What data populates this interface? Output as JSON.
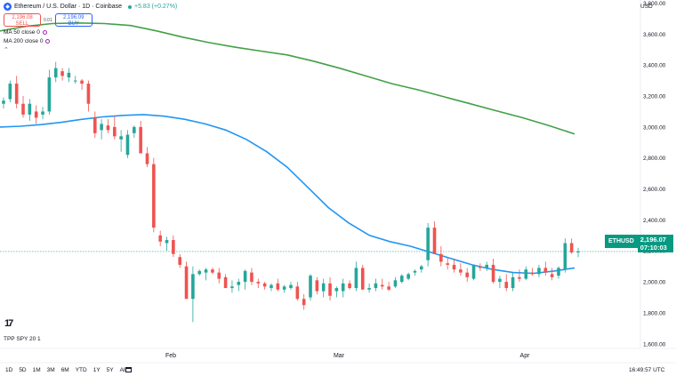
{
  "header": {
    "symbol_title": "Ethereum / U.S. Dollar · 1D · Coinbase",
    "change": "+5.83 (+0.27%)",
    "sell_price": "2,196.08",
    "sell_label": "SELL",
    "spread": "0.01",
    "buy_price": "2,196.09",
    "buy_label": "BUY",
    "currency": "USD"
  },
  "indicators": [
    {
      "label": "MA 50 close 0",
      "color": "#2196f3"
    },
    {
      "label": "MA 200 close 0",
      "color": "#43a047"
    }
  ],
  "price_tag": {
    "symbol": "ETHUSD",
    "price": "2,196.07",
    "countdown": "07:10:03"
  },
  "study_label": "TPP SPY 20 1",
  "tv_logo": "17",
  "bottom_bar": {
    "ranges": [
      "1D",
      "5D",
      "1M",
      "3M",
      "6M",
      "YTD",
      "1Y",
      "5Y",
      "All"
    ],
    "clock": "16:49:57 UTC"
  },
  "chart_data": {
    "type": "candlestick",
    "x_axis_labels": [
      "Feb",
      "Mar",
      "Apr"
    ],
    "y_tick_labels": [
      "3,800.00",
      "3,600.00",
      "3,400.00",
      "3,200.00",
      "3,000.00",
      "2,800.00",
      "2,600.00",
      "2,400.00",
      "2,200.00",
      "2,000.00",
      "1,800.00",
      "1,600.00"
    ],
    "ylim": [
      1570,
      3820
    ],
    "last_price": 2196.07,
    "colors": {
      "up": "#26a69a",
      "down": "#ef5350",
      "ma50": "#2196f3",
      "ma200": "#43a047",
      "last_line": "#26a69a"
    },
    "candles": [
      [
        3150,
        3190,
        3120,
        3170
      ],
      [
        3180,
        3300,
        3160,
        3280
      ],
      [
        3280,
        3330,
        3120,
        3150
      ],
      [
        3150,
        3200,
        3060,
        3080
      ],
      [
        3080,
        3180,
        3040,
        3150
      ],
      [
        3100,
        3140,
        3020,
        3060
      ],
      [
        3080,
        3130,
        3050,
        3100
      ],
      [
        3100,
        3370,
        3080,
        3320
      ],
      [
        3320,
        3420,
        3290,
        3380
      ],
      [
        3360,
        3380,
        3300,
        3330
      ],
      [
        3320,
        3380,
        3290,
        3350
      ],
      [
        3300,
        3330,
        3280,
        3300
      ],
      [
        3300,
        3310,
        3240,
        3280
      ],
      [
        3280,
        3300,
        3100,
        3150
      ],
      [
        3060,
        3100,
        2930,
        2960
      ],
      [
        2980,
        3050,
        2920,
        3020
      ],
      [
        3010,
        3050,
        2960,
        2980
      ],
      [
        3000,
        3070,
        2920,
        2940
      ],
      [
        2920,
        2980,
        2840,
        2940
      ],
      [
        2820,
        2980,
        2800,
        2950
      ],
      [
        2960,
        3010,
        2930,
        3000
      ],
      [
        3000,
        3040,
        2830,
        2830
      ],
      [
        2830,
        2870,
        2740,
        2760
      ],
      [
        2760,
        2800,
        2320,
        2350
      ],
      [
        2300,
        2330,
        2230,
        2260
      ],
      [
        2250,
        2290,
        2200,
        2270
      ],
      [
        2270,
        2300,
        2160,
        2180
      ],
      [
        2160,
        2180,
        2090,
        2110
      ],
      [
        2100,
        2130,
        1890,
        1890
      ],
      [
        1890,
        2100,
        1740,
        2050
      ],
      [
        2050,
        2080,
        2040,
        2070
      ],
      [
        2060,
        2090,
        2010,
        2080
      ],
      [
        2080,
        2090,
        2050,
        2060
      ],
      [
        2060,
        2090,
        1990,
        2020
      ],
      [
        2030,
        2050,
        1960,
        1960
      ],
      [
        1960,
        2010,
        1930,
        1970
      ],
      [
        1980,
        2020,
        1940,
        2000
      ],
      [
        2000,
        2080,
        1950,
        2070
      ],
      [
        2060,
        2090,
        1980,
        2000
      ],
      [
        2000,
        2020,
        1960,
        1990
      ],
      [
        1990,
        2000,
        1950,
        1970
      ],
      [
        1960,
        1990,
        1940,
        1980
      ],
      [
        1990,
        2020,
        1940,
        1950
      ],
      [
        1950,
        1980,
        1930,
        1970
      ],
      [
        1960,
        2000,
        1950,
        1980
      ],
      [
        1970,
        2000,
        1880,
        1890
      ],
      [
        1890,
        1920,
        1820,
        1850
      ],
      [
        1900,
        2050,
        1880,
        2040
      ],
      [
        2010,
        2030,
        1920,
        1940
      ],
      [
        1940,
        2020,
        1900,
        1990
      ],
      [
        1990,
        2030,
        1880,
        1910
      ],
      [
        1940,
        1970,
        1900,
        1960
      ],
      [
        1940,
        2020,
        1900,
        1990
      ],
      [
        1990,
        2010,
        1950,
        1960
      ],
      [
        1960,
        2130,
        1940,
        2090
      ],
      [
        2090,
        2110,
        1950,
        1950
      ],
      [
        1950,
        1990,
        1930,
        1960
      ],
      [
        1960,
        2020,
        1940,
        1990
      ],
      [
        1980,
        2020,
        1950,
        1970
      ],
      [
        1970,
        2000,
        1940,
        1950
      ],
      [
        1970,
        2030,
        1960,
        2010
      ],
      [
        2000,
        2050,
        1990,
        2040
      ],
      [
        2020,
        2060,
        2010,
        2050
      ],
      [
        2060,
        2080,
        2040,
        2070
      ],
      [
        2080,
        2110,
        2060,
        2100
      ],
      [
        2140,
        2380,
        2100,
        2350
      ],
      [
        2350,
        2390,
        2180,
        2180
      ],
      [
        2180,
        2230,
        2100,
        2130
      ],
      [
        2120,
        2160,
        2080,
        2110
      ],
      [
        2110,
        2150,
        2060,
        2080
      ],
      [
        2080,
        2120,
        2040,
        2060
      ],
      [
        2060,
        2090,
        2000,
        2030
      ],
      [
        2020,
        2110,
        2010,
        2110
      ],
      [
        2100,
        2120,
        2070,
        2090
      ],
      [
        2090,
        2130,
        2070,
        2110
      ],
      [
        2110,
        2150,
        1990,
        2000
      ],
      [
        2000,
        2040,
        1960,
        2020
      ],
      [
        2000,
        2050,
        1940,
        1960
      ],
      [
        1960,
        2060,
        1940,
        2030
      ],
      [
        2030,
        2080,
        2000,
        2020
      ],
      [
        2020,
        2100,
        2010,
        2080
      ],
      [
        2060,
        2090,
        2040,
        2050
      ],
      [
        2050,
        2110,
        2030,
        2090
      ],
      [
        2090,
        2130,
        2040,
        2060
      ],
      [
        2050,
        2090,
        2010,
        2030
      ],
      [
        2040,
        2100,
        2020,
        2090
      ],
      [
        2080,
        2280,
        2060,
        2250
      ],
      [
        2250,
        2280,
        2180,
        2190
      ],
      [
        2190,
        2220,
        2160,
        2196
      ]
    ],
    "ma50": [
      3000,
      3005,
      3015,
      3030,
      3050,
      3065,
      3075,
      3080,
      3070,
      3050,
      3020,
      2980,
      2920,
      2840,
      2740,
      2610,
      2480,
      2380,
      2300,
      2260,
      2230,
      2190,
      2150,
      2110,
      2080,
      2060,
      2055,
      2070,
      2090
    ],
    "ma200": [
      3620,
      3650,
      3668,
      3672,
      3668,
      3655,
      3620,
      3580,
      3545,
      3515,
      3490,
      3465,
      3425,
      3380,
      3330,
      3280,
      3240,
      3195,
      3150,
      3105,
      3060,
      3010,
      2955
    ]
  }
}
